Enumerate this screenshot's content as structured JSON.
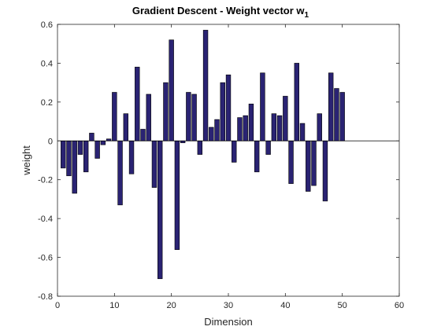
{
  "chart_data": {
    "type": "bar",
    "title": "Gradient Descent - Weight vector w",
    "title_subscript": "1",
    "xlabel": "Dimension",
    "ylabel": "weight",
    "xlim": [
      0,
      60
    ],
    "ylim": [
      -0.8,
      0.6
    ],
    "xticks": [
      0,
      10,
      20,
      30,
      40,
      50,
      60
    ],
    "yticks": [
      -0.8,
      -0.6,
      -0.4,
      -0.2,
      0,
      0.2,
      0.4,
      0.6
    ],
    "bar_color": "#2a2373",
    "bar_edge_color": "#000000",
    "grid": false,
    "x": [
      1,
      2,
      3,
      4,
      5,
      6,
      7,
      8,
      9,
      10,
      11,
      12,
      13,
      14,
      15,
      16,
      17,
      18,
      19,
      20,
      21,
      22,
      23,
      24,
      25,
      26,
      27,
      28,
      29,
      30,
      31,
      32,
      33,
      34,
      35,
      36,
      37,
      38,
      39,
      40,
      41,
      42,
      43,
      44,
      45,
      46,
      47,
      48,
      49,
      50
    ],
    "values": [
      -0.14,
      -0.18,
      -0.27,
      -0.07,
      -0.16,
      0.04,
      -0.09,
      -0.02,
      0.01,
      0.25,
      -0.33,
      0.14,
      -0.17,
      0.38,
      0.06,
      0.24,
      -0.24,
      -0.71,
      0.3,
      0.52,
      -0.56,
      -0.01,
      0.25,
      0.24,
      -0.07,
      0.57,
      0.07,
      0.11,
      0.3,
      0.34,
      -0.11,
      0.12,
      0.13,
      0.19,
      -0.16,
      0.35,
      -0.07,
      0.14,
      0.13,
      0.23,
      -0.22,
      0.4,
      0.09,
      -0.26,
      -0.23,
      0.14,
      -0.31,
      0.35,
      0.27,
      0.25
    ]
  }
}
